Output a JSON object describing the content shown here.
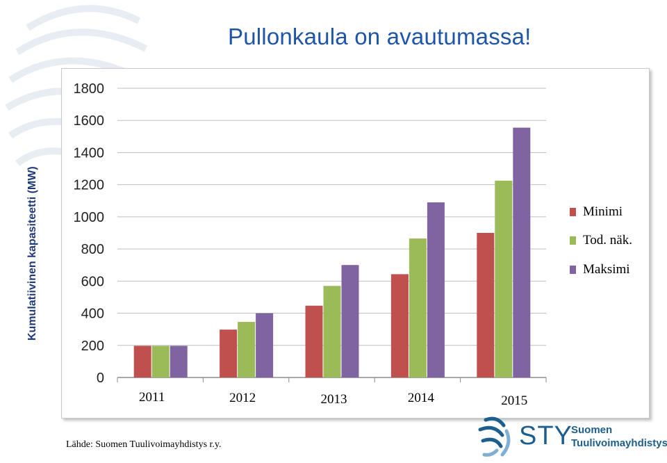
{
  "title": "Pullonkaula on avautumassa!",
  "y_axis_label": "Kumulatiivinen kapasiteetti (MW)",
  "source": "Lähde: Suomen Tuulivoimayhdistys r.y.",
  "logo": {
    "abbrev": "STY",
    "org_line1": "Suomen",
    "org_line2": "Tuulivoimayhdistys ry",
    "icon": "wind-swirl-icon"
  },
  "colors": {
    "title": "#1f55a8",
    "minimi": "#c0504d",
    "tod_nak": "#9bbb59",
    "maksimi": "#8064a2"
  },
  "chart_data": {
    "type": "bar",
    "categories": [
      "2011",
      "2012",
      "2013",
      "2014",
      "2015"
    ],
    "series": [
      {
        "name": "Minimi",
        "values": [
          197,
          298,
          447,
          643,
          900
        ]
      },
      {
        "name": "Tod. näk.",
        "values": [
          197,
          346,
          570,
          865,
          1225
        ]
      },
      {
        "name": "Maksimi",
        "values": [
          197,
          400,
          700,
          1090,
          1555
        ]
      }
    ],
    "ylim": [
      0,
      1800
    ],
    "yticks": [
      "0",
      "200",
      "400",
      "600",
      "800",
      "1000",
      "1200",
      "1400",
      "1600",
      "1800"
    ],
    "grid": true,
    "legend_position": "right"
  }
}
